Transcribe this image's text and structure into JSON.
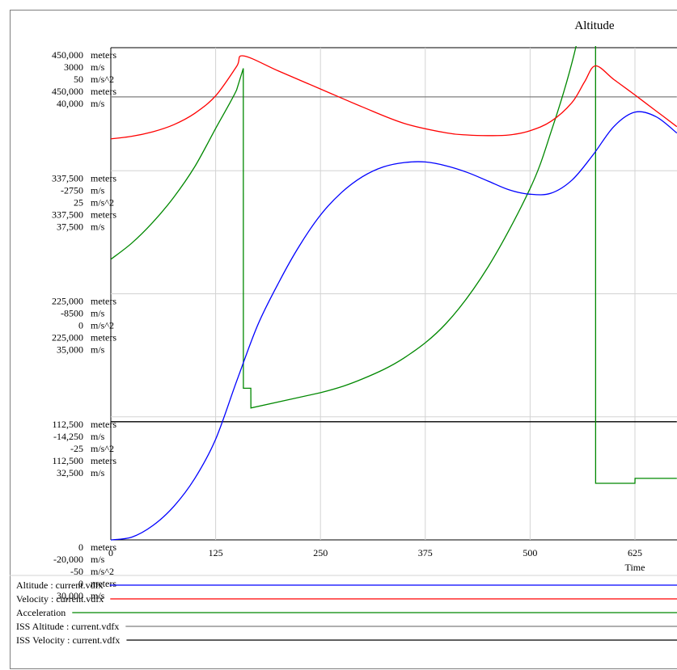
{
  "chart_data": {
    "type": "line",
    "title": "Altitude",
    "xlabel": "Time",
    "xlim": [
      0,
      675
    ],
    "x_ticks": [
      0,
      125,
      250,
      375,
      500,
      625
    ],
    "grid": true,
    "legend_placement": "bottom",
    "axes": [
      {
        "unit": "meters",
        "range": [
          0,
          450000
        ],
        "tick_labels": [
          "450,000",
          "337,500",
          "225,000",
          "112,500",
          "0"
        ]
      },
      {
        "unit": "m/s",
        "range": [
          -20000,
          3000
        ],
        "tick_labels": [
          "3000",
          "-2750",
          "-8500",
          "-14,250",
          "-20,000"
        ]
      },
      {
        "unit": "m/s^2",
        "range": [
          -50,
          50
        ],
        "tick_labels": [
          "50",
          "25",
          "0",
          "-25",
          "-50"
        ]
      },
      {
        "unit": "meters",
        "range": [
          0,
          450000
        ],
        "tick_labels": [
          "450,000",
          "337,500",
          "225,000",
          "112,500",
          "0"
        ]
      },
      {
        "unit": "m/s",
        "range": [
          30000,
          40000
        ],
        "tick_labels": [
          "40,000",
          "37,500",
          "35,000",
          "32,500",
          "30,000"
        ]
      }
    ],
    "series": [
      {
        "name": "Altitude : current.vdfx",
        "color": "#0000ff",
        "axis": 0,
        "x": [
          0,
          25,
          50,
          75,
          100,
          125,
          150,
          175,
          200,
          225,
          250,
          275,
          300,
          325,
          350,
          375,
          400,
          425,
          450,
          475,
          500,
          525,
          550,
          575,
          600,
          625,
          650,
          675
        ],
        "y": [
          0,
          2500,
          13000,
          30500,
          56000,
          92000,
          145000,
          196000,
          235000,
          269000,
          297000,
          317500,
          332000,
          341000,
          345000,
          345500,
          342000,
          336000,
          328000,
          320000,
          316000,
          317000,
          329000,
          352000,
          378000,
          391000,
          387000,
          372000
        ]
      },
      {
        "name": "Velocity : current.vdfx",
        "color": "#ff0000",
        "axis": 1,
        "x": [
          0,
          25,
          50,
          75,
          100,
          125,
          150,
          158,
          200,
          250,
          300,
          350,
          400,
          425,
          450,
          475,
          500,
          525,
          550,
          565,
          578,
          600,
          625,
          650,
          675
        ],
        "y": [
          -1260,
          -1140,
          -930,
          -600,
          -70,
          750,
          2120,
          2620,
          1910,
          1070,
          230,
          -540,
          -980,
          -1080,
          -1110,
          -1080,
          -880,
          -440,
          440,
          1410,
          2150,
          1510,
          790,
          50,
          -690
        ]
      },
      {
        "name": "Acceleration",
        "color": "#008800",
        "axis": 2,
        "x": [
          0,
          25,
          50,
          75,
          100,
          125,
          150,
          158,
          158.1,
          167,
          167.1,
          250,
          300,
          350,
          400,
          450,
          500,
          525,
          550,
          565,
          578,
          578.1,
          625,
          625.1,
          675
        ],
        "y": [
          7,
          10.3,
          14.5,
          19.6,
          25.8,
          33.6,
          41.4,
          45.8,
          -19.2,
          -19.2,
          -23.2,
          -20.1,
          -17.3,
          -13,
          -6,
          5.5,
          21.4,
          32.9,
          47,
          59,
          75,
          -38.5,
          -38.5,
          -37.5,
          -37.5
        ]
      },
      {
        "name": "ISS Altitude : current.vdfx",
        "color": "#7f7f7f",
        "axis": 3,
        "x": [
          0,
          675
        ],
        "y": [
          405000,
          405000
        ]
      },
      {
        "name": "ISS Velocity : current.vdfx",
        "color": "#000000",
        "axis": 4,
        "x": [
          0,
          675
        ],
        "y": [
          32400,
          32400
        ]
      }
    ]
  }
}
